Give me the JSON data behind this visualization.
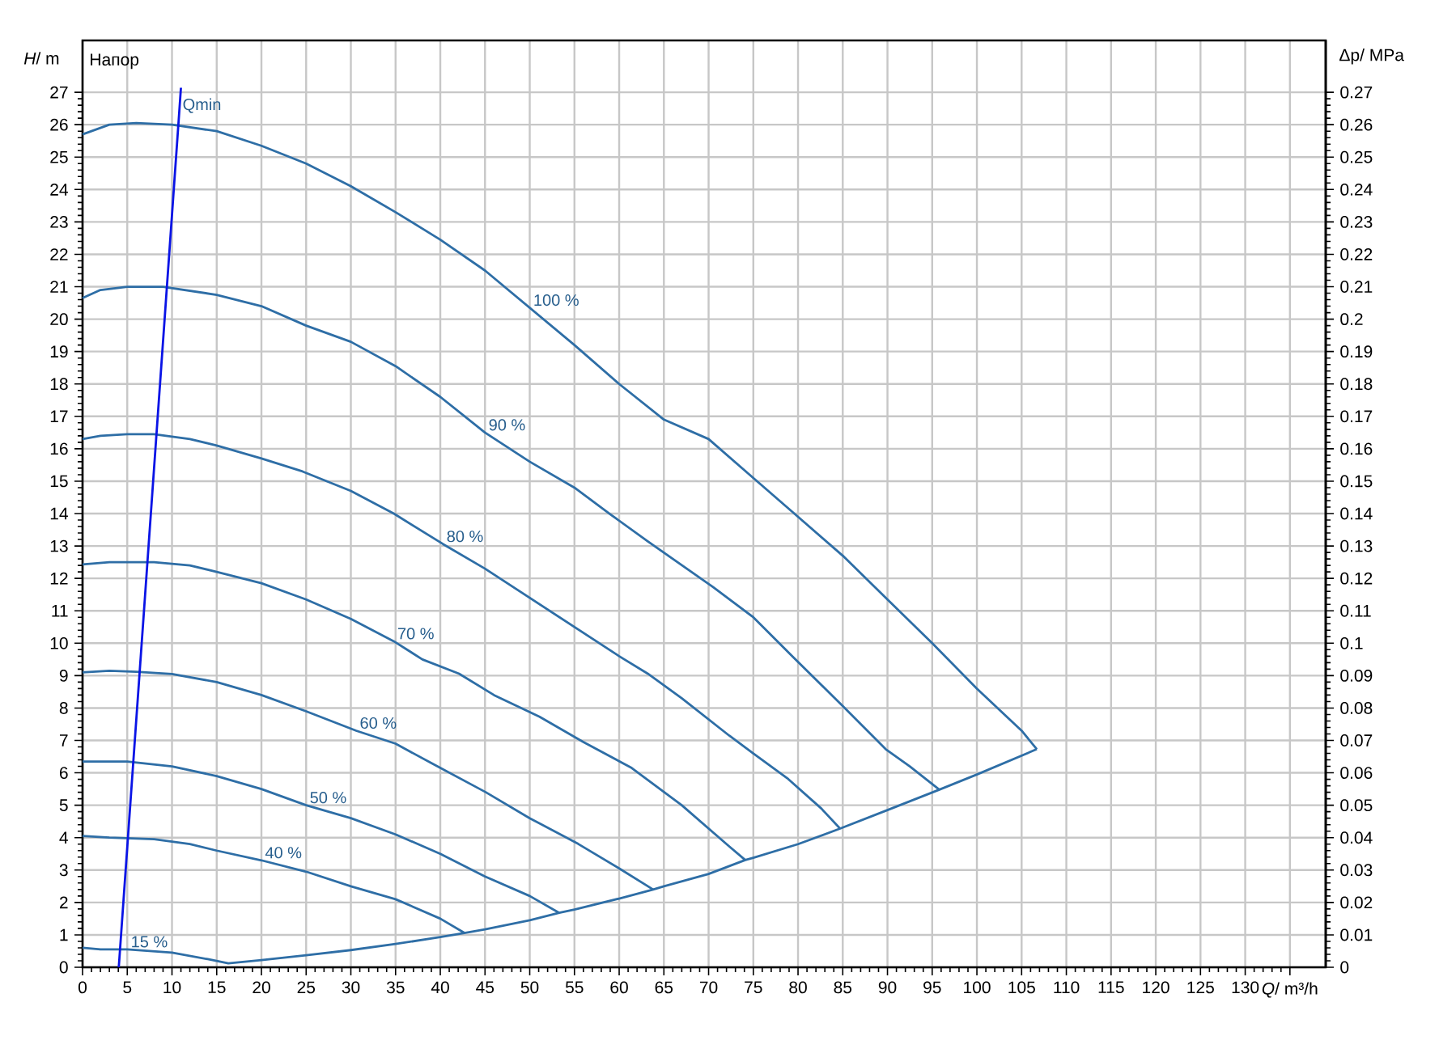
{
  "chart_data": {
    "type": "line",
    "title": "Напор",
    "xlabel": "*Q*/ m³/h",
    "ylabel": "*H*/ m",
    "y2label": "Δp/ MPa",
    "xlim": [
      0,
      139
    ],
    "ylim": [
      0,
      28.6
    ],
    "y2lim": [
      0,
      0.286
    ],
    "xticks": [
      0,
      5,
      10,
      15,
      20,
      25,
      30,
      35,
      40,
      45,
      50,
      55,
      60,
      65,
      70,
      75,
      80,
      85,
      90,
      95,
      100,
      105,
      110,
      115,
      120,
      125,
      130,
      {
        "value": 135,
        "label": null
      }
    ],
    "yticks": [
      0,
      1,
      2,
      3,
      4,
      5,
      6,
      7,
      8,
      9,
      10,
      11,
      12,
      13,
      14,
      15,
      16,
      17,
      18,
      19,
      20,
      21,
      22,
      23,
      24,
      25,
      26,
      27
    ],
    "y2ticks": [
      0,
      0.01,
      0.02,
      0.03,
      0.04,
      0.05,
      0.06,
      0.07,
      0.08,
      0.09,
      0.1,
      0.11,
      0.12,
      0.13,
      0.14,
      0.15,
      0.16,
      0.17,
      0.18,
      0.19,
      0.2,
      0.21,
      0.22,
      0.23,
      0.24,
      0.25,
      0.26,
      0.27
    ],
    "grid": true,
    "series": [
      {
        "color": "#2e6ea6",
        "x": [
          0,
          3,
          6,
          10,
          15,
          20,
          25,
          30,
          35,
          40,
          45,
          50,
          55,
          60,
          65,
          70,
          75,
          80,
          85,
          90,
          95,
          100,
          105,
          106.7
        ],
        "values": [
          25.7,
          26,
          26.05,
          26,
          25.8,
          25.35,
          24.8,
          24.1,
          23.3,
          22.45,
          21.5,
          20.35,
          19.2,
          18.0,
          16.9,
          16.3,
          15.1,
          13.9,
          12.7,
          11.35,
          10.0,
          8.6,
          7.3,
          6.73
        ]
      },
      {
        "color": "#2e6ea6",
        "x": [
          0,
          2,
          5,
          9,
          15,
          20,
          25,
          30,
          35,
          40,
          45,
          50,
          55,
          59,
          63.2,
          70.5,
          75,
          79.5,
          85,
          89.8,
          92.5,
          95.8
        ],
        "values": [
          20.65,
          20.9,
          21.0,
          21.0,
          20.75,
          20.4,
          19.8,
          19.3,
          18.55,
          17.6,
          16.5,
          15.6,
          14.8,
          13.98,
          13.14,
          11.73,
          10.8,
          9.56,
          8.06,
          6.73,
          6.2,
          5.48
        ]
      },
      {
        "color": "#2e6ea6",
        "x": [
          0,
          2,
          5,
          8,
          12,
          15,
          20,
          24.6,
          30,
          34.8,
          40.3,
          45,
          50,
          55,
          60,
          63.2,
          67,
          72.3,
          75,
          78.9,
          82.6,
          84.7
        ],
        "values": [
          16.3,
          16.4,
          16.45,
          16.45,
          16.3,
          16.1,
          15.7,
          15.3,
          14.7,
          14.0,
          13.06,
          12.3,
          11.4,
          10.5,
          9.6,
          9.06,
          8.3,
          7.15,
          6.6,
          5.81,
          4.9,
          4.28
        ]
      },
      {
        "color": "#2e6ea6",
        "x": [
          0,
          3,
          8,
          12,
          15,
          20,
          25,
          30,
          34.8,
          38,
          42.1,
          46,
          51.1,
          56,
          61.4,
          67,
          72.3,
          74.1
        ],
        "values": [
          12.43,
          12.5,
          12.5,
          12.4,
          12.2,
          11.85,
          11.35,
          10.75,
          10.06,
          9.5,
          9.06,
          8.4,
          7.73,
          6.95,
          6.15,
          5.0,
          3.73,
          3.31
        ]
      },
      {
        "color": "#2e6ea6",
        "x": [
          0,
          3,
          6,
          10,
          15,
          20,
          25,
          30.6,
          35,
          39,
          45.1,
          50,
          55.4,
          60,
          63.8
        ],
        "values": [
          9.1,
          9.15,
          9.12,
          9.05,
          8.8,
          8.4,
          7.9,
          7.3,
          6.9,
          6.3,
          5.4,
          4.6,
          3.81,
          3.05,
          2.4
        ]
      },
      {
        "color": "#2e6ea6",
        "x": [
          0,
          5,
          10,
          15,
          20,
          25,
          30,
          35,
          40,
          45,
          50,
          53.3
        ],
        "values": [
          6.35,
          6.35,
          6.2,
          5.9,
          5.5,
          5.0,
          4.6,
          4.1,
          3.5,
          2.8,
          2.2,
          1.68
        ]
      },
      {
        "color": "#2e6ea6",
        "x": [
          0,
          3,
          8,
          12,
          15,
          20,
          25,
          30,
          35,
          40,
          42.7
        ],
        "values": [
          4.05,
          4.0,
          3.95,
          3.8,
          3.6,
          3.3,
          2.95,
          2.5,
          2.1,
          1.5,
          1.06
        ]
      },
      {
        "color": "#2e6ea6",
        "x": [
          0,
          2,
          5,
          10,
          14,
          16.3,
          20,
          25,
          30,
          35,
          40,
          42.7,
          45,
          50,
          53.3,
          55,
          60,
          63.8,
          65,
          70,
          74.1,
          75,
          80,
          84.7,
          90,
          95.8,
          100,
          106.7
        ],
        "values": [
          0.6,
          0.55,
          0.55,
          0.45,
          0.25,
          0.12,
          0.22,
          0.37,
          0.53,
          0.72,
          0.93,
          1.06,
          1.17,
          1.45,
          1.68,
          1.78,
          2.12,
          2.4,
          2.5,
          2.88,
          3.31,
          3.38,
          3.8,
          4.28,
          4.85,
          5.48,
          5.95,
          6.73
        ]
      },
      {
        "color": "#0a14e6",
        "x": [
          4.05,
          10.79,
          11.0
        ],
        "values": [
          0,
          26.3,
          27.14
        ]
      }
    ],
    "annotations": [
      {
        "text": "100 %",
        "x": 50,
        "y": 20.35
      },
      {
        "text": "90 %",
        "x": 45,
        "y": 16.5
      },
      {
        "text": "80 %",
        "x": 40.3,
        "y": 13.06
      },
      {
        "text": "70 %",
        "x": 34.8,
        "y": 10.06
      },
      {
        "text": "60 %",
        "x": 30.6,
        "y": 7.3
      },
      {
        "text": "50 %",
        "x": 25,
        "y": 5.0
      },
      {
        "text": "40 %",
        "x": 20,
        "y": 3.3
      },
      {
        "text": "15 %",
        "x": 5,
        "y": 0.55
      },
      {
        "text": "Qmin",
        "x": 10.79,
        "y": 26.3
      }
    ]
  }
}
